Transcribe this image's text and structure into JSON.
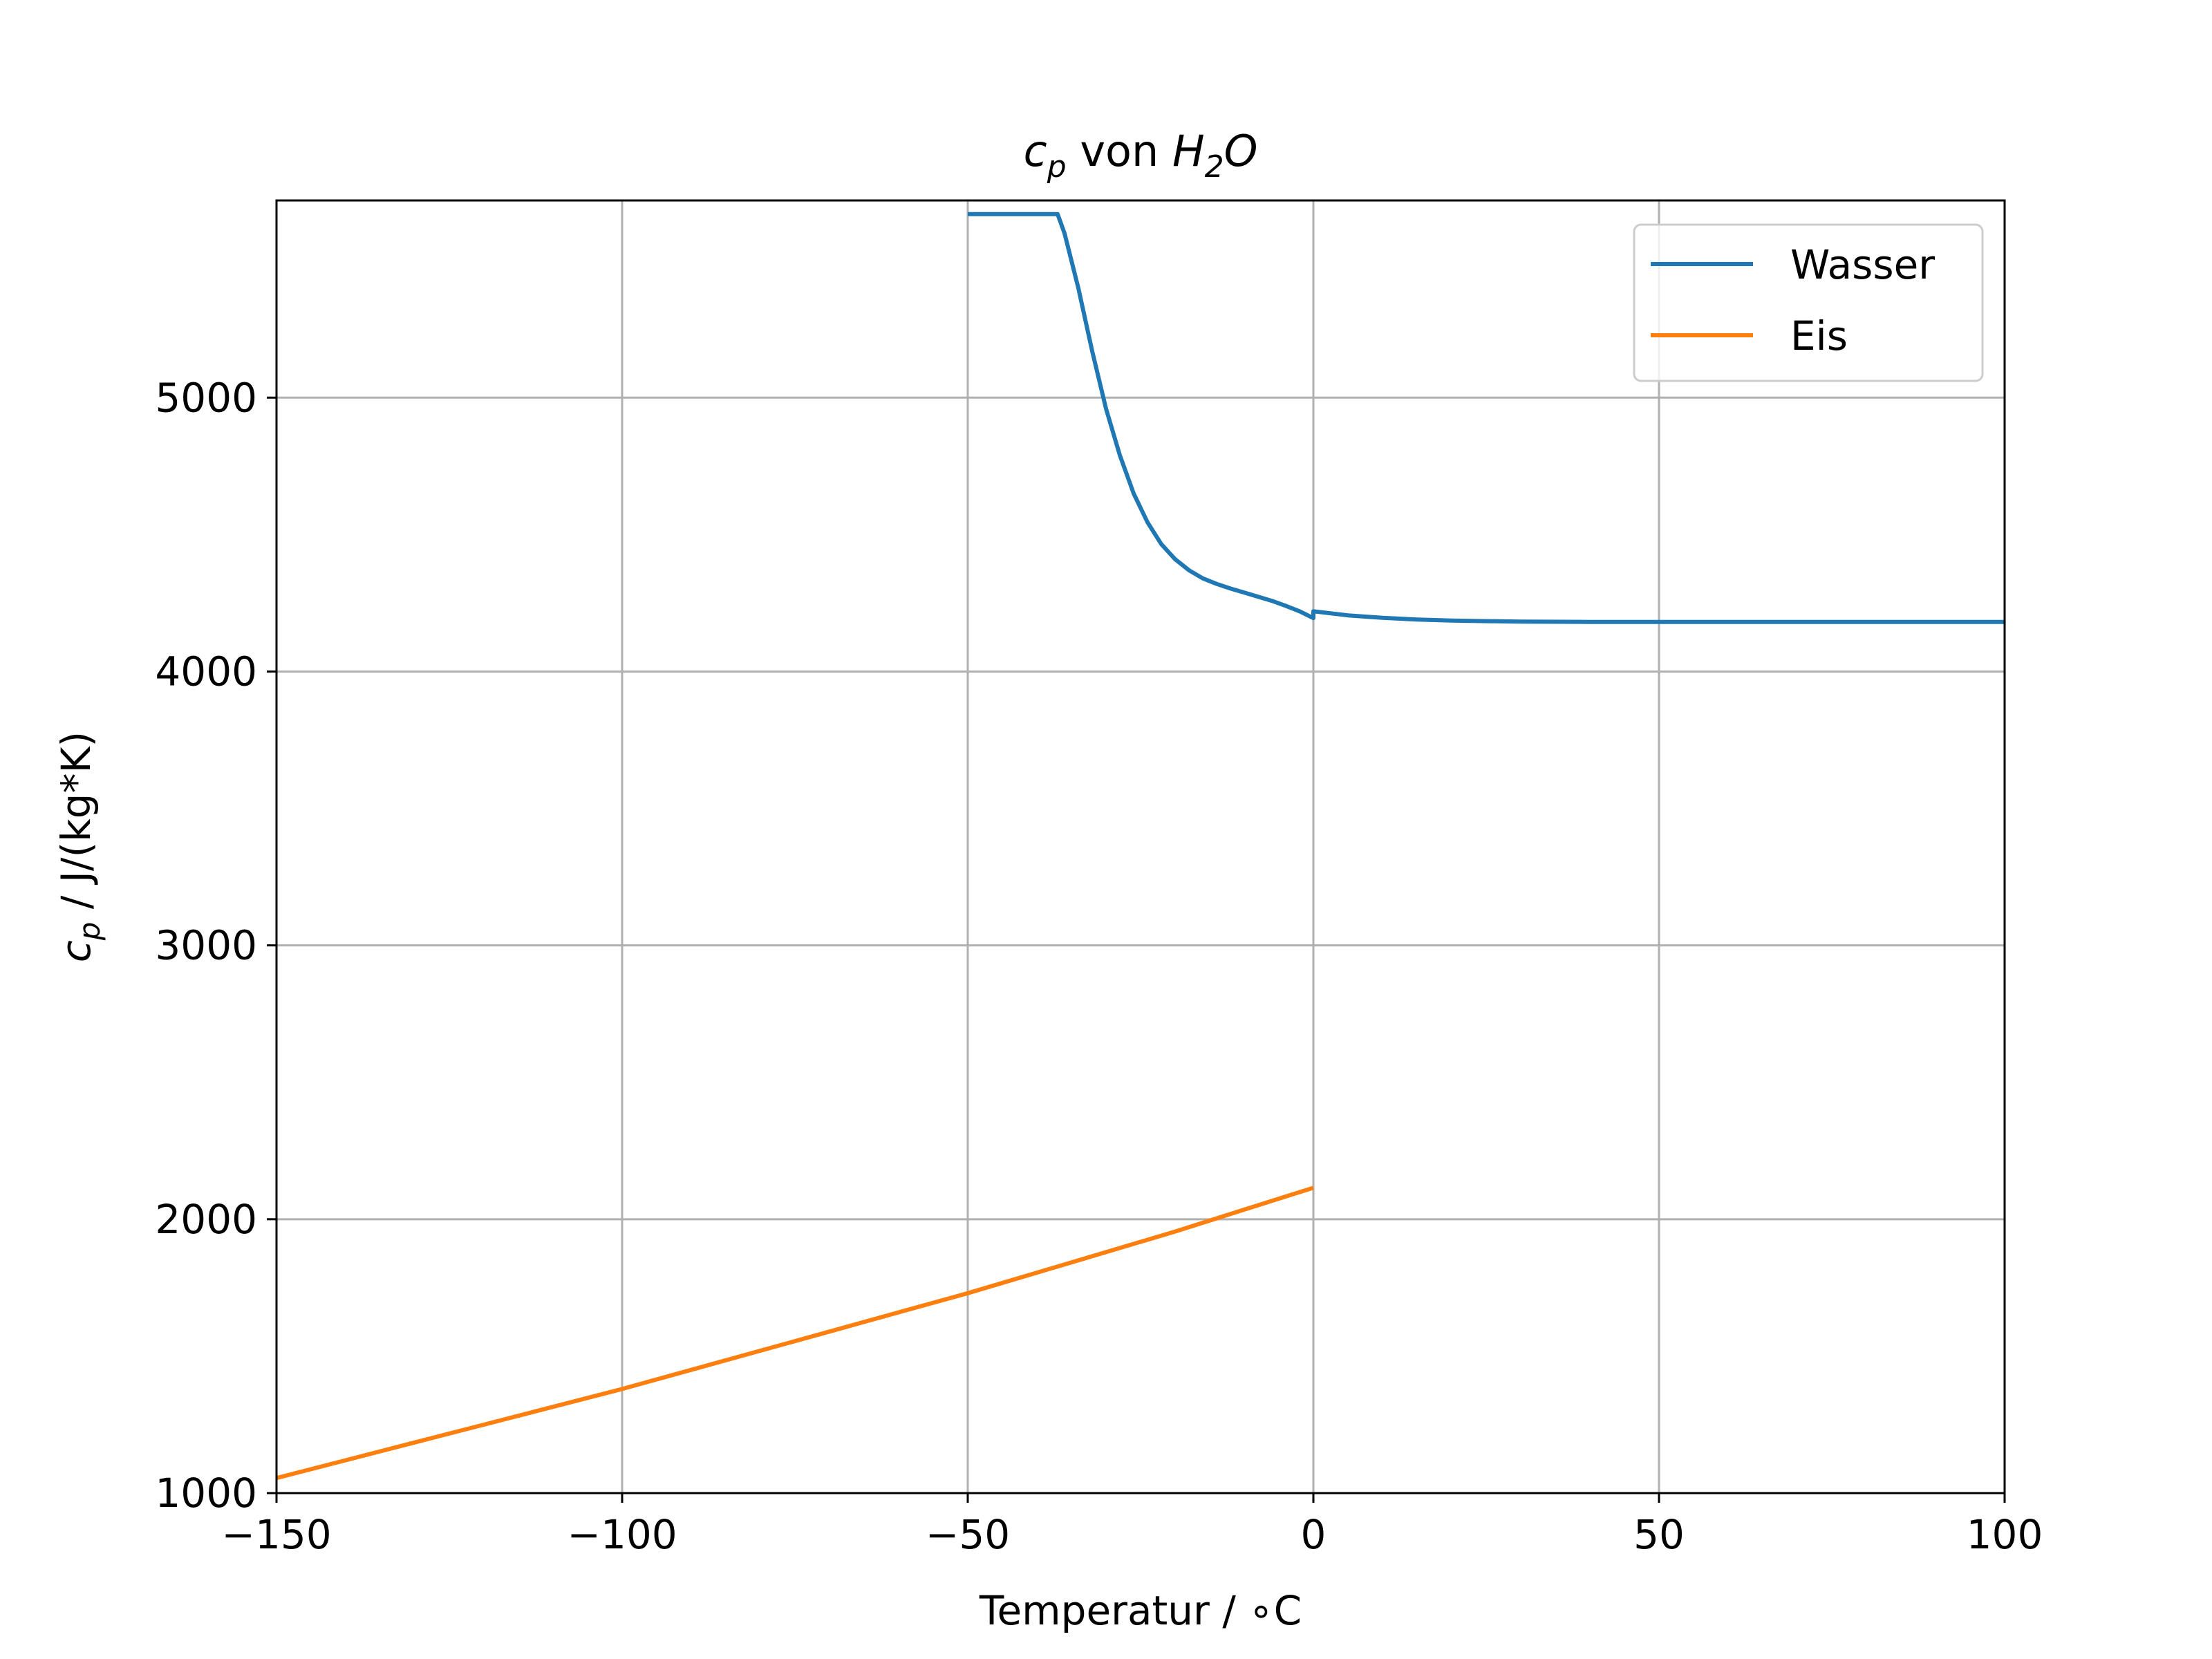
{
  "chart_data": {
    "type": "line",
    "title_parts": [
      "c",
      "p",
      " von ",
      "H",
      "2",
      "O"
    ],
    "xlabel": "Temperatur / ∘C",
    "ylabel_parts": [
      "c",
      "p",
      " / J/(kg*K)"
    ],
    "xlim": [
      -150,
      100
    ],
    "ylim": [
      1000,
      5720
    ],
    "x_ticks": [
      -150,
      -100,
      -50,
      0,
      50,
      100
    ],
    "x_tick_labels": [
      "−150",
      "−100",
      "−50",
      "0",
      "50",
      "100"
    ],
    "y_ticks": [
      1000,
      2000,
      3000,
      4000,
      5000
    ],
    "y_tick_labels": [
      "1000",
      "2000",
      "3000",
      "4000",
      "5000"
    ],
    "grid": true,
    "legend_position": "top-right",
    "series": [
      {
        "name": "Wasser",
        "color": "#1f77b4",
        "points": [
          [
            -50,
            5670
          ],
          [
            -37,
            5670
          ],
          [
            -36,
            5600
          ],
          [
            -34,
            5400
          ],
          [
            -32,
            5170
          ],
          [
            -30,
            4960
          ],
          [
            -28,
            4790
          ],
          [
            -26,
            4650
          ],
          [
            -24,
            4545
          ],
          [
            -22,
            4465
          ],
          [
            -20,
            4410
          ],
          [
            -18,
            4370
          ],
          [
            -16,
            4340
          ],
          [
            -14,
            4320
          ],
          [
            -12,
            4303
          ],
          [
            -10,
            4288
          ],
          [
            -8,
            4273
          ],
          [
            -6,
            4258
          ],
          [
            -4,
            4240
          ],
          [
            -2,
            4220
          ],
          [
            0,
            4195
          ],
          [
            0,
            4220
          ],
          [
            5,
            4205
          ],
          [
            10,
            4196
          ],
          [
            15,
            4190
          ],
          [
            20,
            4186
          ],
          [
            30,
            4182
          ],
          [
            40,
            4181
          ],
          [
            60,
            4181
          ],
          [
            80,
            4181
          ],
          [
            100,
            4181
          ]
        ]
      },
      {
        "name": "Eis",
        "color": "#ff7f0e",
        "points": [
          [
            -150,
            1055
          ],
          [
            -140,
            1120
          ],
          [
            -130,
            1185
          ],
          [
            -120,
            1250
          ],
          [
            -110,
            1315
          ],
          [
            -100,
            1380
          ],
          [
            -90,
            1450
          ],
          [
            -80,
            1520
          ],
          [
            -70,
            1590
          ],
          [
            -60,
            1660
          ],
          [
            -50,
            1730
          ],
          [
            -40,
            1805
          ],
          [
            -30,
            1880
          ],
          [
            -20,
            1955
          ],
          [
            -10,
            2035
          ],
          [
            0,
            2115
          ]
        ]
      }
    ]
  }
}
